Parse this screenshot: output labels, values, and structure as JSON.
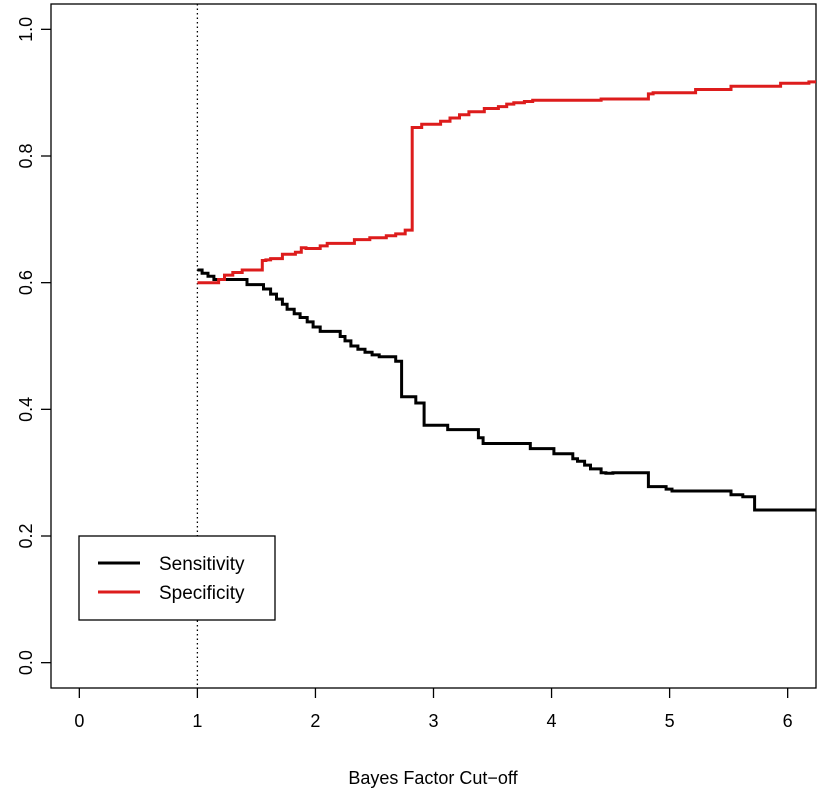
{
  "chart_data": {
    "type": "line",
    "title": "",
    "xlabel": "Bayes Factor Cut−off",
    "ylabel": "",
    "xlim": [
      -0.24,
      6.24
    ],
    "ylim": [
      -0.04,
      1.04
    ],
    "xticks": [
      0,
      1,
      2,
      3,
      4,
      5,
      6
    ],
    "xtick_labels": [
      "0",
      "1",
      "2",
      "3",
      "4",
      "5",
      "6"
    ],
    "yticks": [
      0.0,
      0.2,
      0.4,
      0.6,
      0.8,
      1.0
    ],
    "ytick_labels": [
      "0.0",
      "0.2",
      "0.4",
      "0.6",
      "0.8",
      "1.0"
    ],
    "grid": false,
    "reference_line": {
      "x": 1,
      "style": "dotted",
      "color": "#000000"
    },
    "legend": {
      "placement": "bottom-left"
    },
    "series": [
      {
        "name": "Sensitivity",
        "color": "#000000",
        "x": [
          1.0,
          1.04,
          1.04,
          1.09,
          1.09,
          1.14,
          1.14,
          1.42,
          1.42,
          1.56,
          1.56,
          1.62,
          1.62,
          1.67,
          1.67,
          1.72,
          1.72,
          1.76,
          1.76,
          1.82,
          1.82,
          1.87,
          1.87,
          1.93,
          1.93,
          1.98,
          1.98,
          2.04,
          2.04,
          2.21,
          2.21,
          2.25,
          2.25,
          2.3,
          2.3,
          2.36,
          2.36,
          2.42,
          2.42,
          2.48,
          2.48,
          2.54,
          2.54,
          2.68,
          2.68,
          2.73,
          2.73,
          2.85,
          2.85,
          2.92,
          2.92,
          3.12,
          3.12,
          3.38,
          3.38,
          3.42,
          3.42,
          3.82,
          3.82,
          4.02,
          4.02,
          4.18,
          4.18,
          4.22,
          4.22,
          4.28,
          4.28,
          4.33,
          4.33,
          4.42,
          4.42,
          4.46,
          4.46,
          4.52,
          4.52,
          4.82,
          4.82,
          4.97,
          4.97,
          5.02,
          5.02,
          5.52,
          5.52,
          5.62,
          5.62,
          5.72,
          5.72,
          6.24
        ],
        "y": [
          0.62,
          0.62,
          0.615,
          0.615,
          0.61,
          0.61,
          0.605,
          0.605,
          0.597,
          0.597,
          0.59,
          0.59,
          0.582,
          0.582,
          0.574,
          0.574,
          0.566,
          0.566,
          0.558,
          0.558,
          0.551,
          0.551,
          0.545,
          0.545,
          0.538,
          0.538,
          0.53,
          0.53,
          0.523,
          0.523,
          0.515,
          0.515,
          0.508,
          0.508,
          0.5,
          0.5,
          0.495,
          0.495,
          0.49,
          0.49,
          0.486,
          0.486,
          0.483,
          0.483,
          0.476,
          0.476,
          0.42,
          0.42,
          0.41,
          0.41,
          0.375,
          0.375,
          0.368,
          0.368,
          0.355,
          0.355,
          0.346,
          0.346,
          0.338,
          0.338,
          0.33,
          0.33,
          0.322,
          0.322,
          0.318,
          0.318,
          0.312,
          0.312,
          0.306,
          0.306,
          0.3,
          0.3,
          0.299,
          0.299,
          0.3,
          0.3,
          0.278,
          0.278,
          0.274,
          0.274,
          0.271,
          0.271,
          0.265,
          0.265,
          0.262,
          0.262,
          0.241,
          0.241
        ]
      },
      {
        "name": "Specificity",
        "color": "#dd1c1c",
        "x": [
          1.0,
          1.18,
          1.18,
          1.23,
          1.23,
          1.3,
          1.3,
          1.38,
          1.38,
          1.46,
          1.46,
          1.55,
          1.55,
          1.58,
          1.58,
          1.62,
          1.62,
          1.72,
          1.72,
          1.83,
          1.83,
          1.88,
          1.88,
          1.92,
          1.92,
          2.04,
          2.04,
          2.1,
          2.1,
          2.33,
          2.33,
          2.46,
          2.46,
          2.6,
          2.6,
          2.68,
          2.68,
          2.76,
          2.76,
          2.82,
          2.82,
          2.9,
          2.9,
          3.06,
          3.06,
          3.14,
          3.14,
          3.22,
          3.22,
          3.3,
          3.3,
          3.43,
          3.43,
          3.55,
          3.55,
          3.62,
          3.62,
          3.68,
          3.68,
          3.77,
          3.77,
          3.84,
          3.84,
          4.42,
          4.42,
          4.82,
          4.82,
          4.86,
          4.86,
          5.22,
          5.22,
          5.52,
          5.52,
          5.94,
          5.94,
          6.18,
          6.18,
          6.24
        ],
        "y": [
          0.6,
          0.6,
          0.605,
          0.605,
          0.612,
          0.612,
          0.616,
          0.616,
          0.62,
          0.62,
          0.62,
          0.62,
          0.635,
          0.635,
          0.636,
          0.636,
          0.638,
          0.638,
          0.645,
          0.645,
          0.648,
          0.648,
          0.655,
          0.655,
          0.654,
          0.654,
          0.658,
          0.658,
          0.662,
          0.662,
          0.668,
          0.668,
          0.671,
          0.671,
          0.674,
          0.674,
          0.677,
          0.677,
          0.683,
          0.683,
          0.845,
          0.845,
          0.85,
          0.85,
          0.855,
          0.855,
          0.86,
          0.86,
          0.865,
          0.865,
          0.87,
          0.87,
          0.875,
          0.875,
          0.878,
          0.878,
          0.882,
          0.882,
          0.884,
          0.884,
          0.886,
          0.886,
          0.888,
          0.888,
          0.89,
          0.89,
          0.898,
          0.898,
          0.9,
          0.9,
          0.905,
          0.905,
          0.91,
          0.91,
          0.915,
          0.915,
          0.917,
          0.917
        ]
      }
    ]
  }
}
